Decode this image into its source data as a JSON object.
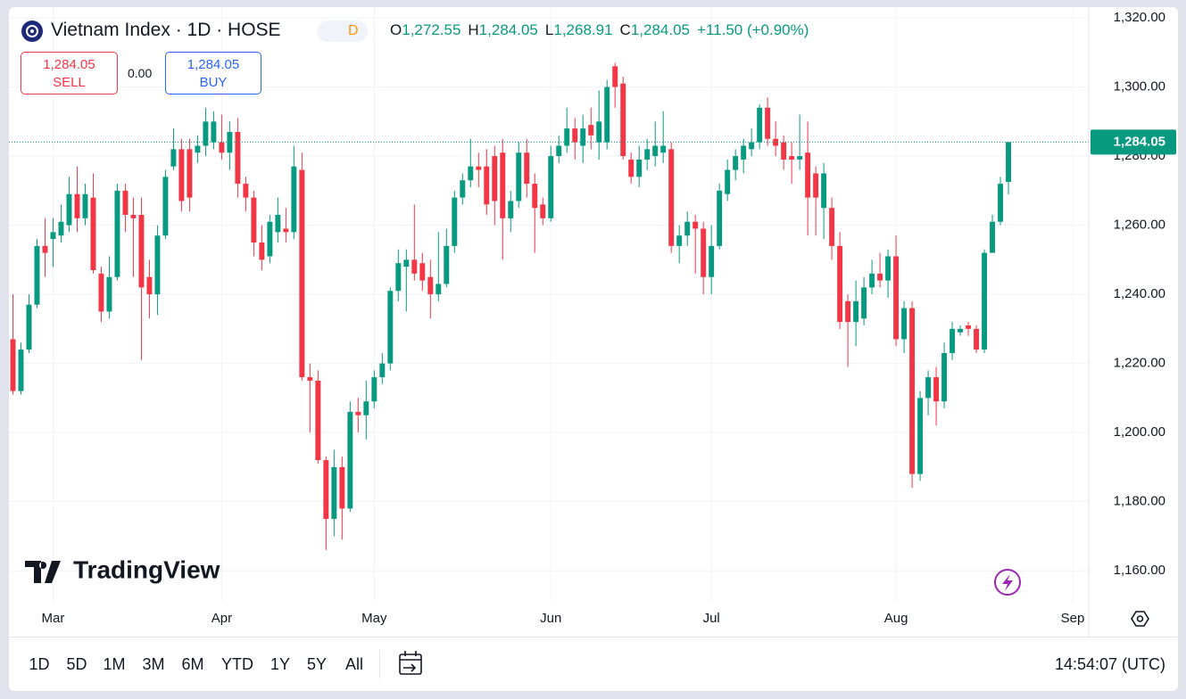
{
  "header": {
    "symbol_title": "Vietnam Index · 1D · HOSE",
    "interval_badge": "D",
    "ohlc": [
      {
        "key": "O",
        "text": "1,272.55"
      },
      {
        "key": "H",
        "text": "1,284.05"
      },
      {
        "key": "L",
        "text": "1,268.91"
      },
      {
        "key": "C",
        "text": "1,284.05"
      }
    ],
    "change": "+11.50 (+0.90%)"
  },
  "trade": {
    "sell_price": "1,284.05",
    "sell": "SELL",
    "spread": "0.00",
    "buy_price": "1,284.05",
    "buy": "BUY"
  },
  "chart_data": {
    "type": "candlestick",
    "up_color": "#089981",
    "down_color": "#f23645",
    "grid": true,
    "open": [
      1227,
      1212,
      1224,
      1237,
      1254,
      1256,
      1257,
      1260,
      1269,
      1262,
      1268,
      1246,
      1235,
      1245,
      1270,
      1263,
      1263,
      1245,
      1240,
      1257,
      1277,
      1282,
      1282,
      1281,
      1283,
      1284,
      1284,
      1281,
      1287,
      1272,
      1268,
      1255,
      1251,
      1258,
      1259,
      1258,
      1276,
      1216,
      1215,
      1192,
      1175,
      1190,
      1178,
      1206,
      1205,
      1209,
      1216,
      1220,
      1241,
      1248,
      1250,
      1249,
      1245,
      1240,
      1243,
      1254,
      1268,
      1273,
      1277,
      1277,
      1280,
      1281,
      1262,
      1267,
      1281,
      1272,
      1266,
      1262,
      1280,
      1283,
      1288,
      1283,
      1289,
      1284,
      1284,
      1306,
      1301,
      1279,
      1274,
      1279,
      1280,
      1281,
      1282,
      1254,
      1257,
      1261,
      1259,
      1245,
      1254,
      1269,
      1276,
      1279,
      1282,
      1284,
      1294,
      1285,
      1284,
      1280,
      1279,
      1281,
      1275,
      1265,
      1265,
      1254,
      1238,
      1232,
      1233,
      1242,
      1246,
      1244,
      1251,
      1227,
      1236,
      1188,
      1210,
      1216,
      1209,
      1223,
      1229,
      1231,
      1230,
      1224,
      1252,
      1261,
      1272.55
    ],
    "high": [
      1240,
      1226,
      1240,
      1256,
      1262,
      1262,
      1266,
      1274,
      1277,
      1272,
      1275,
      1248,
      1251,
      1272,
      1272,
      1268,
      1268,
      1250,
      1260,
      1276,
      1288,
      1285,
      1285,
      1286,
      1294,
      1293,
      1292,
      1290,
      1291,
      1274,
      1270,
      1260,
      1263,
      1268,
      1265,
      1283,
      1281,
      1220,
      1218,
      1193,
      1195,
      1193,
      1209,
      1210,
      1215,
      1218,
      1223,
      1242,
      1253,
      1253,
      1266,
      1252,
      1250,
      1258,
      1259,
      1270,
      1275,
      1285,
      1281,
      1282,
      1283,
      1285,
      1270,
      1284,
      1285,
      1275,
      1268,
      1283,
      1286,
      1294,
      1291,
      1292,
      1294,
      1299,
      1302,
      1307,
      1303,
      1281,
      1283,
      1285,
      1290,
      1293,
      1284,
      1260,
      1264,
      1263,
      1261,
      1260,
      1272,
      1279,
      1282,
      1285,
      1288,
      1295,
      1297,
      1290,
      1286,
      1284,
      1292,
      1290,
      1277,
      1278,
      1268,
      1258,
      1240,
      1244,
      1245,
      1250,
      1252,
      1253,
      1257,
      1238,
      1238,
      1212,
      1218,
      1219,
      1226,
      1232,
      1231,
      1232,
      1231,
      1253,
      1263,
      1274,
      1284.05
    ],
    "low": [
      1211,
      1211,
      1223,
      1236,
      1245,
      1248,
      1255,
      1258,
      1258,
      1260,
      1246,
      1232,
      1233,
      1244,
      1258,
      1245,
      1221,
      1233,
      1234,
      1256,
      1276,
      1264,
      1264,
      1278,
      1280,
      1282,
      1279,
      1276,
      1268,
      1264,
      1251,
      1247,
      1249,
      1255,
      1255,
      1256,
      1215,
      1200,
      1191,
      1166,
      1170,
      1169,
      1177,
      1200,
      1198,
      1207,
      1214,
      1218,
      1238,
      1235,
      1244,
      1241,
      1233,
      1238,
      1242,
      1252,
      1266,
      1271,
      1271,
      1263,
      1260,
      1250,
      1258,
      1265,
      1268,
      1252,
      1260,
      1261,
      1278,
      1281,
      1279,
      1278,
      1282,
      1279,
      1282,
      1294,
      1279,
      1272,
      1271,
      1276,
      1277,
      1278,
      1252,
      1249,
      1254,
      1246,
      1240,
      1240,
      1253,
      1267,
      1273,
      1275,
      1280,
      1282,
      1283,
      1280,
      1276,
      1272,
      1276,
      1257,
      1257,
      1256,
      1250,
      1230,
      1219,
      1225,
      1231,
      1240,
      1242,
      1239,
      1225,
      1223,
      1184,
      1186,
      1205,
      1202,
      1207,
      1221,
      1228,
      1228,
      1223,
      1223,
      1252,
      1260,
      1268.91
    ],
    "close": [
      1212,
      1224,
      1237,
      1254,
      1252,
      1258,
      1261,
      1269,
      1262,
      1269,
      1247,
      1235,
      1245,
      1270,
      1263,
      1262,
      1242,
      1240,
      1257,
      1274,
      1282,
      1267,
      1268,
      1283,
      1290,
      1290,
      1281,
      1287,
      1272,
      1268,
      1255,
      1250,
      1261,
      1263,
      1258,
      1277,
      1216,
      1215,
      1192,
      1175,
      1190,
      1178,
      1206,
      1205,
      1209,
      1216,
      1220,
      1241,
      1249,
      1250,
      1246,
      1244,
      1240,
      1243,
      1254,
      1268,
      1273,
      1277,
      1276,
      1266,
      1267,
      1262,
      1267,
      1281,
      1272,
      1265,
      1262,
      1280,
      1283,
      1288,
      1284,
      1288,
      1286,
      1290,
      1300,
      1300,
      1280,
      1274,
      1279,
      1282,
      1283,
      1283,
      1254,
      1257,
      1261,
      1259,
      1245,
      1254,
      1270,
      1276,
      1280,
      1283,
      1284,
      1294,
      1285,
      1283,
      1279,
      1279,
      1280,
      1268,
      1268,
      1275,
      1254,
      1232,
      1232,
      1238,
      1242,
      1246,
      1244,
      1251,
      1227,
      1236,
      1188,
      1210,
      1216,
      1209,
      1223,
      1230,
      1230,
      1230,
      1224,
      1252,
      1261,
      1272,
      1284.05
    ],
    "xlim": [
      -0.5,
      134
    ],
    "xticks": [
      {
        "value": 5,
        "label": "Mar"
      },
      {
        "value": 26,
        "label": "Apr"
      },
      {
        "value": 45,
        "label": "May"
      },
      {
        "value": 67,
        "label": "Jun"
      },
      {
        "value": 87,
        "label": "Jul"
      },
      {
        "value": 110,
        "label": "Aug"
      },
      {
        "value": 132,
        "label": "Sep"
      }
    ],
    "ylim": [
      1151,
      1322.6
    ],
    "yticks": [
      {
        "value": 1160,
        "label": "1,160.00"
      },
      {
        "value": 1180,
        "label": "1,180.00"
      },
      {
        "value": 1200,
        "label": "1,200.00"
      },
      {
        "value": 1220,
        "label": "1,220.00"
      },
      {
        "value": 1240,
        "label": "1,240.00"
      },
      {
        "value": 1260,
        "label": "1,260.00"
      },
      {
        "value": 1280,
        "label": "1,280.00"
      },
      {
        "value": 1300,
        "label": "1,300.00"
      },
      {
        "value": 1320,
        "label": "1,320.00"
      }
    ],
    "last_price": {
      "value": 1284.05,
      "label": "1,284.05"
    },
    "watermark": "TradingView"
  },
  "toolbar": {
    "ranges": [
      "1D",
      "5D",
      "1M",
      "3M",
      "6M",
      "YTD",
      "1Y",
      "5Y",
      "All"
    ],
    "clock": "14:54:07 (UTC)"
  }
}
